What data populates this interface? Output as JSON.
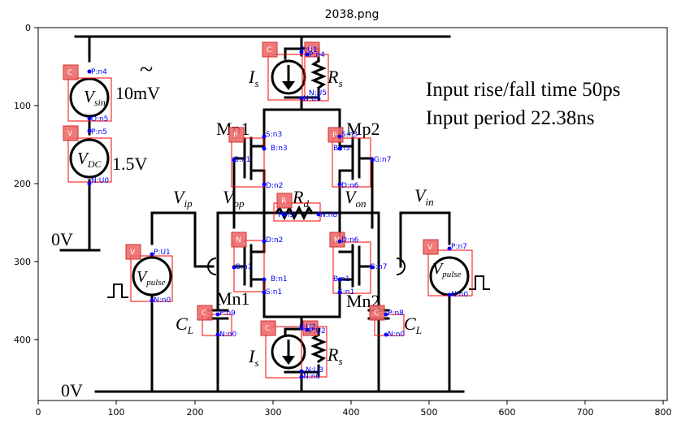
{
  "title": "2038.png",
  "axes": {
    "x_ticks": [
      "0",
      "100",
      "200",
      "300",
      "400",
      "500",
      "600",
      "700",
      "800"
    ],
    "y_ticks": [
      "0",
      "100",
      "200",
      "300",
      "400"
    ]
  },
  "labels": {
    "vsin": "V",
    "vsin_sub": "sin",
    "vsin_val": "10mV",
    "tilde": "~",
    "vdc": "V",
    "vdc_sub": "DC",
    "vdc_val": "1.5V",
    "zero_v_top": "0V",
    "zero_v_bottom": "0V",
    "is_top": "I",
    "is_top_sub": "s",
    "rs_top": "R",
    "rs_top_sub": "s",
    "is_bot": "I",
    "is_bot_sub": "s",
    "rs_bot": "R",
    "rs_bot_sub": "s",
    "mp1": "Mp1",
    "mp2": "Mp2",
    "mn1": "Mn1",
    "mn2": "Mn2",
    "vip": "V",
    "vip_sub": "ip",
    "vop": "V",
    "vop_sub": "op",
    "rd": "R",
    "rd_sub": "d",
    "von": "V",
    "von_sub": "on",
    "vin": "V",
    "vin_sub": "in",
    "vpulse_l": "V",
    "vpulse_l_sub": "pulse",
    "vpulse_r": "V",
    "vpulse_r_sub": "pulse",
    "cl_left": "C",
    "cl_left_sub": "L",
    "cl_right": "C",
    "cl_right_sub": "L",
    "note1": "Input rise/fall time 50ps",
    "note2": "Input period 22.38ns"
  },
  "components": [
    {
      "type": "C",
      "pins": [
        "P:n4",
        "O:n5"
      ]
    },
    {
      "type": "V",
      "pins": [
        "P:n5",
        "N:U0"
      ]
    },
    {
      "type": "C",
      "pins": [
        "P:U1"
      ]
    },
    {
      "type": "R",
      "pins": [
        "P:n4",
        "N:U5"
      ]
    },
    {
      "type": "P",
      "pins": [
        "S:n3",
        "B:n3",
        "G:n1",
        "D:n2"
      ]
    },
    {
      "type": "P",
      "pins": [
        "S:n3",
        "B:n3",
        "G:n7",
        "D:n6"
      ]
    },
    {
      "type": "R",
      "pins": [
        "P:n9",
        "N:n8"
      ]
    },
    {
      "type": "N",
      "pins": [
        "D:n2",
        "G:n1",
        "B:n1",
        "S:n1"
      ]
    },
    {
      "type": "N",
      "pins": [
        "D:n6",
        "G:n7",
        "B:n1",
        "S:n1"
      ]
    },
    {
      "type": "V",
      "pins": [
        "P:U1",
        "N:n0"
      ]
    },
    {
      "type": "V",
      "pins": [
        "P:n7",
        "N:n0"
      ]
    },
    {
      "type": "C",
      "pins": [
        "P:n9",
        "N:n0"
      ]
    },
    {
      "type": "C",
      "pins": [
        "P:n8",
        "N:n0"
      ]
    },
    {
      "type": "C",
      "pins": [
        "P:U2",
        "N:n0"
      ]
    },
    {
      "type": "R",
      "pins": [
        "P:U2",
        "N:U3"
      ]
    }
  ],
  "pin_labels": {
    "vsin_p": "P:n4",
    "vsin_n": "O:n5",
    "vdc_p": "P:n5",
    "vdc_n": "N:U0",
    "cs_top_p": "P:U1",
    "rs_top_p": "P:n4",
    "rs_top_n": "N:U5",
    "is_top_n": "N:U6",
    "mp1_s": "S:n3",
    "mp1_b": "B:n3",
    "mp1_g": "G:n1",
    "mp1_d": "D:n2",
    "mp2_s": "S:n3",
    "mp2_b": "B:n3",
    "mp2_g": "G:n7",
    "mp2_d": "D:n6",
    "rd_p": "P:n9",
    "rd_n": "N:n8",
    "mn1_d": "D:n2",
    "mn1_g": "G:n1",
    "mn1_b": "B:n1",
    "mn1_s": "S:n1",
    "mn2_d": "D:n6",
    "mn2_g": "G:n7",
    "mn2_b": "B:n1",
    "mn2_s": "S:n1",
    "vpl_p": "P:U1",
    "vpl_n": "N:n0",
    "vpr_p": "P:n7",
    "vpr_n": "N:n0",
    "cll_p": "P:n9",
    "cll_n": "N:n0",
    "clr_p": "P:n8",
    "clr_n": "N:n0",
    "is_bot_p": "P:U2",
    "is_bot_n": "N:U3",
    "is_bot_n2": "N:n0",
    "rs_bot_p": "P:U2"
  },
  "badges": {
    "vsin": "C",
    "vdc": "V",
    "cs_top": "C",
    "rs_top": "R",
    "mp1": "P",
    "mp2": "P",
    "rd": "R",
    "mn1": "N",
    "mn2": "N",
    "vpl": "V",
    "vpr": "V",
    "cll": "C",
    "clr": "C",
    "cs_bot": "C",
    "rs_bot": "R"
  },
  "colors": {
    "bbox": "#ff0000",
    "badge_fill": "#ee6a6a",
    "pin_text": "#0000ff",
    "wire": "#000000"
  }
}
